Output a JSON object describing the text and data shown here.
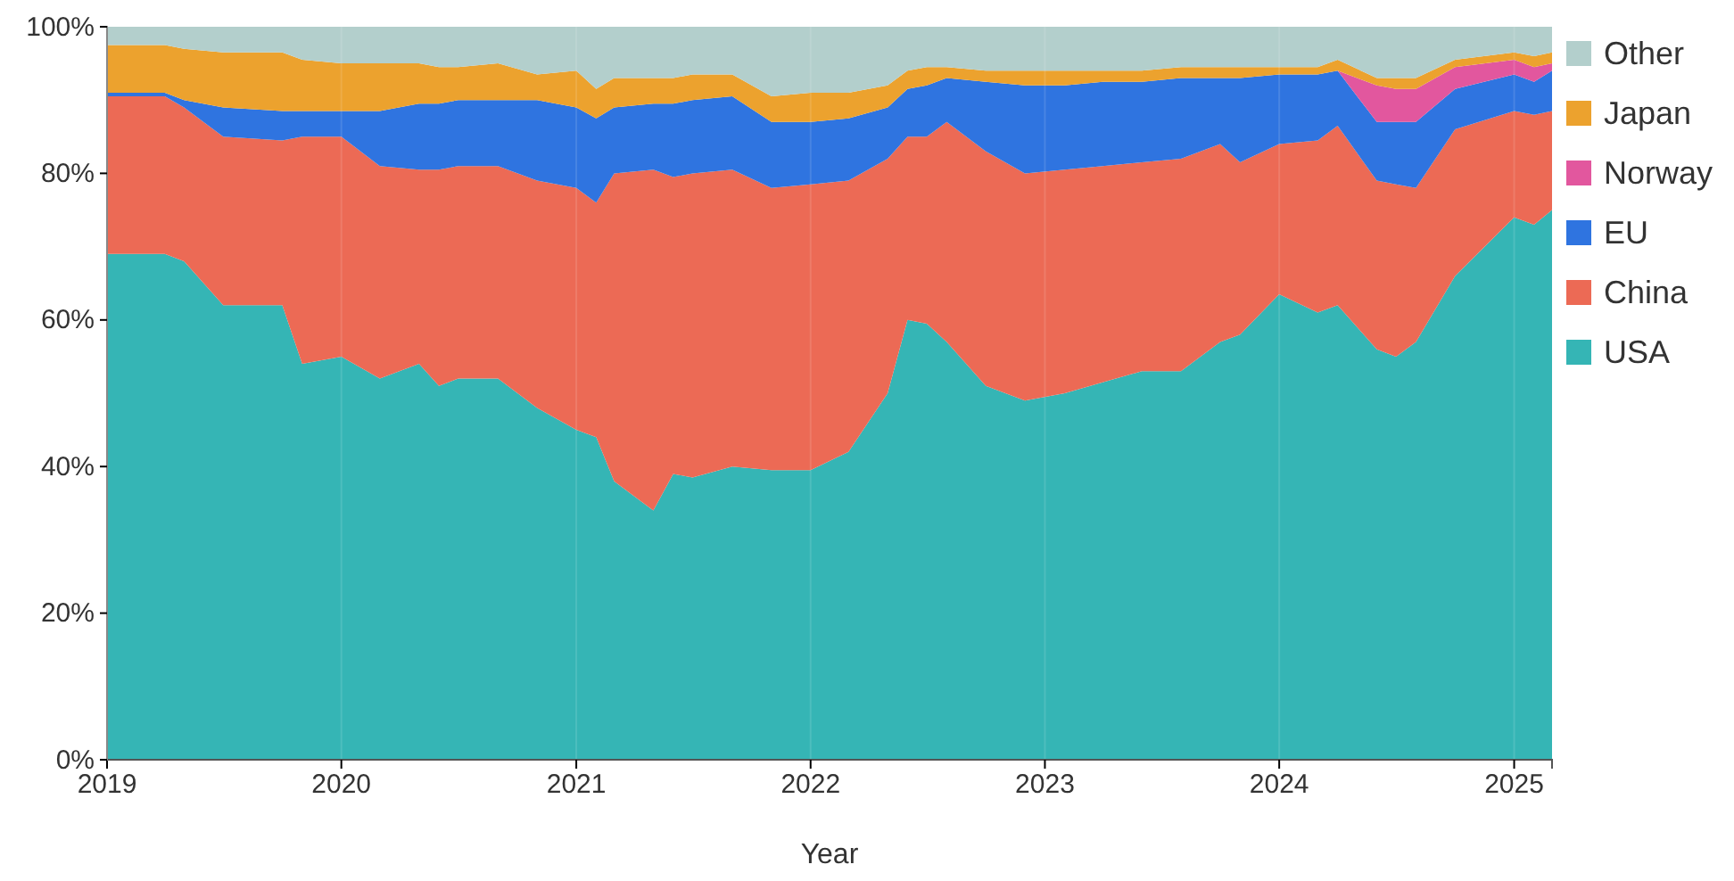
{
  "chart_data": {
    "type": "area",
    "stacked": true,
    "xlabel": "Year",
    "legend": "right",
    "grid": "x",
    "x": [
      "2019-01",
      "2019-04",
      "2019-05",
      "2019-07",
      "2019-10",
      "2019-11",
      "2020-01",
      "2020-03",
      "2020-05",
      "2020-06",
      "2020-07",
      "2020-09",
      "2020-11",
      "2021-01",
      "2021-02",
      "2021-03",
      "2021-05",
      "2021-06",
      "2021-07",
      "2021-09",
      "2021-11",
      "2022-01",
      "2022-03",
      "2022-05",
      "2022-06",
      "2022-07",
      "2022-08",
      "2022-10",
      "2022-12",
      "2023-02",
      "2023-04",
      "2023-06",
      "2023-08",
      "2023-10",
      "2023-11",
      "2024-01",
      "2024-03",
      "2024-04",
      "2024-06",
      "2024-07",
      "2024-08",
      "2024-10",
      "2025-01",
      "2025-02",
      "2025-03"
    ],
    "xlim": [
      "2019-01",
      "2025-03"
    ],
    "xticks": [
      {
        "value": "2019",
        "label": "2019"
      },
      {
        "value": "2020",
        "label": "2020"
      },
      {
        "value": "2021",
        "label": "2021"
      },
      {
        "value": "2022",
        "label": "2022"
      },
      {
        "value": "2023",
        "label": "2023"
      },
      {
        "value": "2024",
        "label": "2024"
      },
      {
        "value": "2025",
        "label": "2025"
      }
    ],
    "ylim": [
      0,
      100
    ],
    "yticks": [
      {
        "value": 0,
        "label": "0%"
      },
      {
        "value": 20,
        "label": "20%"
      },
      {
        "value": 40,
        "label": "40%"
      },
      {
        "value": 60,
        "label": "60%"
      },
      {
        "value": 80,
        "label": "80%"
      },
      {
        "value": 100,
        "label": "100%"
      }
    ],
    "series": [
      {
        "name": "USA",
        "color": "#35b5b5",
        "values": [
          69,
          69,
          68,
          62,
          62,
          54,
          55,
          52,
          54,
          51,
          52,
          52,
          48,
          45,
          44,
          38,
          34,
          39,
          38.5,
          40,
          39.5,
          39.5,
          42,
          50,
          60,
          59.5,
          57,
          51,
          49,
          50,
          51.5,
          53,
          53,
          57,
          58,
          63.5,
          61,
          62,
          56,
          55,
          57,
          66,
          74,
          73,
          75
        ]
      },
      {
        "name": "China",
        "color": "#ec6a55",
        "values": [
          21.5,
          21.5,
          21,
          23,
          22.5,
          31,
          30,
          29,
          26.5,
          29.5,
          29,
          29,
          31,
          33,
          32,
          42,
          46.5,
          40.5,
          41.5,
          40.5,
          38.5,
          39,
          37,
          32,
          25,
          25.5,
          30,
          32,
          31,
          30.5,
          29.5,
          28.5,
          29,
          27,
          23.5,
          20.5,
          23.5,
          24.5,
          23,
          23.5,
          21,
          20,
          14.5,
          15,
          13.5
        ]
      },
      {
        "name": "EU",
        "color": "#2f74e0",
        "values": [
          0.5,
          0.5,
          1,
          4,
          4,
          3.5,
          3.5,
          7.5,
          9,
          9,
          9,
          9,
          11,
          11,
          11.5,
          9,
          9,
          10,
          10,
          10,
          9,
          8.5,
          8.5,
          7,
          6.5,
          7,
          6,
          9.5,
          12,
          11.5,
          11.5,
          11,
          11,
          9,
          11.5,
          9.5,
          9,
          7.5,
          8,
          8.5,
          9,
          5.5,
          5,
          4.5,
          5.5
        ]
      },
      {
        "name": "Norway",
        "color": "#e2579e",
        "values": [
          0,
          0,
          0,
          0,
          0,
          0,
          0,
          0,
          0,
          0,
          0,
          0,
          0,
          0,
          0,
          0,
          0,
          0,
          0,
          0,
          0,
          0,
          0,
          0,
          0,
          0,
          0,
          0,
          0,
          0,
          0,
          0,
          0,
          0,
          0,
          0,
          0,
          0,
          5,
          4.5,
          4.5,
          3,
          2,
          2,
          1
        ]
      },
      {
        "name": "Japan",
        "color": "#eca22e",
        "values": [
          6.5,
          6.5,
          7,
          7.5,
          8,
          7,
          6.5,
          6.5,
          5.5,
          5,
          4.5,
          5,
          3.5,
          5,
          4,
          4,
          3.5,
          3.5,
          3.5,
          3,
          3.5,
          4,
          3.5,
          3,
          2.5,
          2.5,
          1.5,
          1.5,
          2,
          2,
          1.5,
          1.5,
          1.5,
          1.5,
          1.5,
          1,
          1,
          1.5,
          1,
          1.5,
          1.5,
          1,
          1,
          1.5,
          1.5
        ]
      },
      {
        "name": "Other",
        "color": "#b3cfcc",
        "values": [
          2.5,
          2.5,
          3,
          3.5,
          3.5,
          4.5,
          5,
          5,
          5,
          5.5,
          5.5,
          5,
          6.5,
          6,
          8.5,
          7,
          7,
          7,
          6.5,
          6.5,
          9.5,
          9,
          9,
          8,
          6,
          5.5,
          5.5,
          6,
          6,
          6,
          6,
          6,
          5.5,
          5.5,
          5.5,
          5.5,
          5.5,
          4.5,
          7,
          7,
          7,
          4.5,
          3.5,
          4,
          3.5
        ]
      }
    ]
  }
}
